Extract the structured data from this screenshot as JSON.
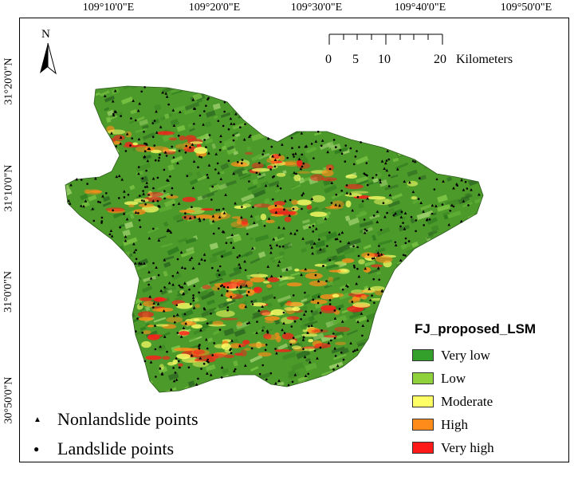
{
  "axes": {
    "top_labels": [
      "109°10'0\"E",
      "109°20'0\"E",
      "109°30'0\"E",
      "109°40'0\"E",
      "109°50'0\"E"
    ],
    "left_labels": [
      "31°20'0\"N",
      "31°10'0\"N",
      "31°0'0\"N",
      "30°50'0\"N"
    ]
  },
  "north_arrow": {
    "label": "N"
  },
  "scale_bar": {
    "ticks": [
      "0",
      "5",
      "10",
      "20"
    ],
    "unit": "Kilometers"
  },
  "legend": {
    "title": "FJ_proposed_LSM",
    "classes": [
      {
        "label": "Very low",
        "color": "#33a02c"
      },
      {
        "label": "Low",
        "color": "#8fd13a"
      },
      {
        "label": "Moderate",
        "color": "#ffff66"
      },
      {
        "label": "High",
        "color": "#ff8c1a"
      },
      {
        "label": "Very high",
        "color": "#ff1a1a"
      }
    ]
  },
  "point_legend": {
    "nonlandslide": "Nonlandslide points",
    "landslide": "Landslide points"
  },
  "colors": {
    "relief_dark": "#2f6b22",
    "relief_light": "#9acd6a"
  }
}
